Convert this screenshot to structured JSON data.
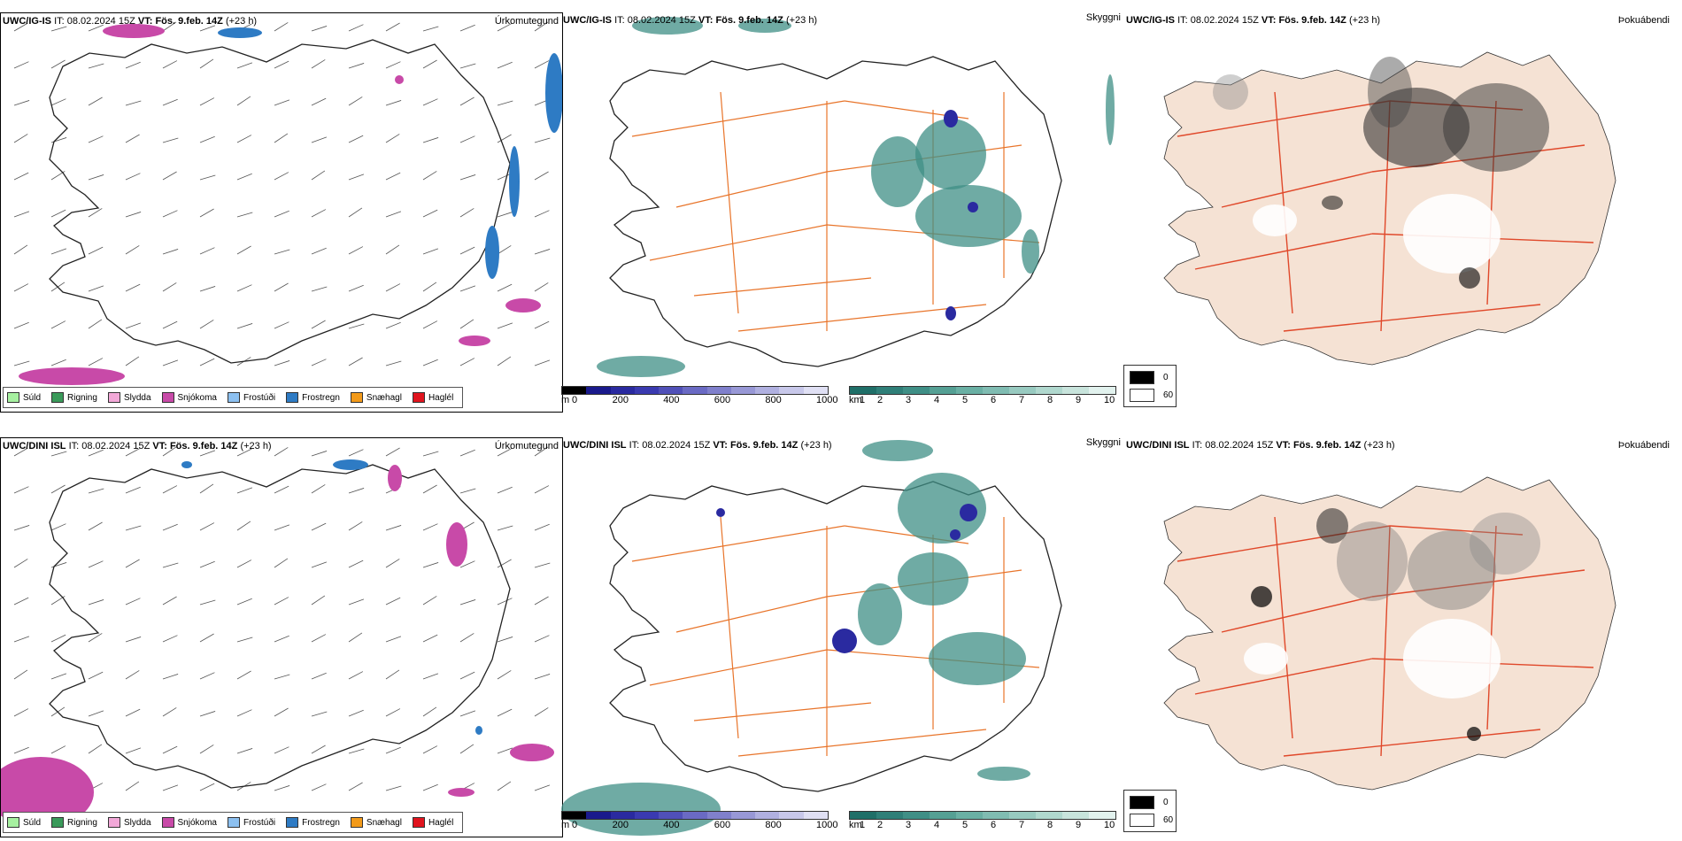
{
  "rows": [
    {
      "model": "UWC/IG-IS",
      "it_label": "IT:",
      "it_value": "08.02.2024 15Z",
      "vt_label": "VT:",
      "vt_value": "Fös. 9.feb. 14Z",
      "lead": "(+23 h)"
    },
    {
      "model": "UWC/DINI ISL",
      "it_label": "IT:",
      "it_value": "08.02.2024 15Z",
      "vt_label": "VT:",
      "vt_value": "Fös. 9.feb. 14Z",
      "lead": "(+23 h)"
    }
  ],
  "panel_labels": {
    "precip_type": "Úrkomutegund",
    "cloud_base": "Skyggni",
    "fog": "Þokuábendi"
  },
  "precip_legend": [
    {
      "label": "Súld",
      "color": "#a6f0a0"
    },
    {
      "label": "Rigning",
      "color": "#3a9a5a"
    },
    {
      "label": "Slydda",
      "color": "#f2a8d8"
    },
    {
      "label": "Snjókoma",
      "color": "#c84aa8"
    },
    {
      "label": "Frostúði",
      "color": "#8cc0f0"
    },
    {
      "label": "Frostregn",
      "color": "#2e7bc4"
    },
    {
      "label": "Snæhagl",
      "color": "#f29a1a"
    },
    {
      "label": "Haglél",
      "color": "#e0141e"
    }
  ],
  "cloud_scale": {
    "unit": "m",
    "ticks": [
      "0",
      "200",
      "400",
      "600",
      "800",
      "1000"
    ],
    "colors": [
      "#000000",
      "#1a1a8c",
      "#2a2aa0",
      "#3a3ab0",
      "#5050b8",
      "#6a6ac4",
      "#8080cc",
      "#9898d6",
      "#b0b0e0",
      "#c8c8ea",
      "#e0e0f4"
    ]
  },
  "vis_scale": {
    "unit": "km",
    "ticks": [
      "1",
      "2",
      "3",
      "4",
      "5",
      "6",
      "7",
      "8",
      "9",
      "10"
    ],
    "colors": [
      "#1f6f68",
      "#2f7f78",
      "#3f8f86",
      "#55a094",
      "#6ab0a4",
      "#80bcb2",
      "#98cac0",
      "#b0d8ce",
      "#c8e4dc",
      "#e2f2ee"
    ]
  },
  "fog_scale": {
    "values": [
      "0",
      "60"
    ],
    "colors": [
      "#000000",
      "#ffffff"
    ]
  },
  "map_colors": {
    "land": "#f5e2d4",
    "roads": "#e8742a",
    "fog_roads": "#e0482a",
    "rivers": "#6688ee",
    "coast": "#222222",
    "snow": "#c84aa8",
    "frz": "#2e7bc4",
    "vis": "#3f8f86",
    "cloud": "#2a2aa0"
  }
}
